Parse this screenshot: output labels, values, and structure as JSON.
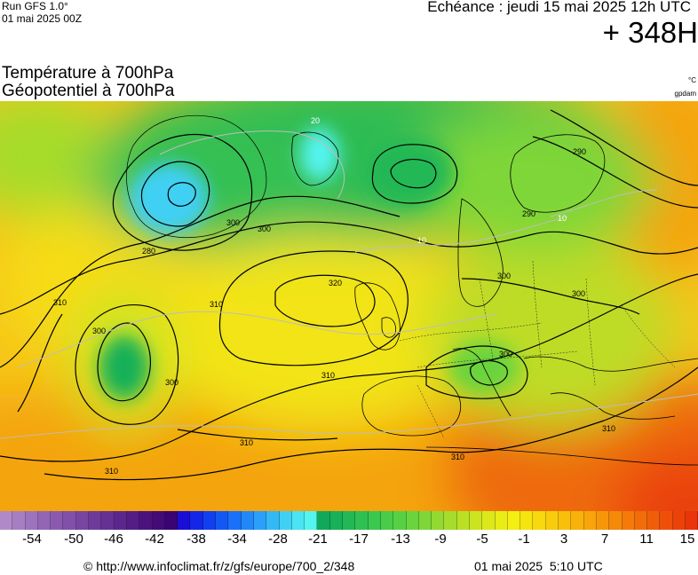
{
  "header": {
    "run_label": "Run GFS 1.0°",
    "run_date": "01 mai 2025 00Z",
    "echeance": "Echéance : jeudi 15 mai 2025 12h UTC",
    "lead_time": "+ 348H"
  },
  "parameters": {
    "line1": "Température à 700hPa",
    "line2": "Géopotentiel à 700hPa",
    "unit_temperature": "°C",
    "unit_geopotential": "gpdam"
  },
  "colorbar": {
    "tick_labels": [
      "-54",
      "-50",
      "-46",
      "-42",
      "-38",
      "-34",
      "-28",
      "-21",
      "-17",
      "-13",
      "-9",
      "-5",
      "-1",
      "3",
      "7",
      "11",
      "15"
    ],
    "colors": [
      "#b08ac8",
      "#a67fc2",
      "#9c73bc",
      "#9266b5",
      "#8a5aaf",
      "#8150a8",
      "#7845a1",
      "#6f3a9a",
      "#673093",
      "#5d268c",
      "#541c85",
      "#4b127e",
      "#430a78",
      "#3a0472",
      "#1a0ed6",
      "#1426e6",
      "#1240f0",
      "#1458f4",
      "#1a70f6",
      "#2288f8",
      "#2aa0f8",
      "#34b8f6",
      "#40d0f4",
      "#4ae4f2",
      "#54f4f0",
      "#12a85a",
      "#18b058",
      "#22b855",
      "#2ec052",
      "#3ac850",
      "#48cc4a",
      "#58d044",
      "#6ad43e",
      "#7ed638",
      "#92da32",
      "#a6dc2c",
      "#bae026",
      "#cce420",
      "#dce81a",
      "#eaec16",
      "#f4ee12",
      "#f6e410",
      "#f8d80e",
      "#f8cc0c",
      "#f8c00a",
      "#f8b20a",
      "#f8a40a",
      "#f8960a",
      "#f6880a",
      "#f47a0a",
      "#f26c0a",
      "#f05e0a",
      "#ee500a",
      "#ec420a",
      "#ea340a"
    ],
    "temp_min": -57,
    "temp_max": 17
  },
  "map": {
    "contour_labels": [
      "20",
      "280",
      "290",
      "300",
      "310",
      "320",
      "310",
      "300",
      "310",
      "300",
      "310",
      "300",
      "290",
      "300",
      "300",
      "310",
      "310",
      "310",
      "-10",
      "10",
      "-20",
      "280"
    ],
    "highs": [
      "320"
    ],
    "lows": [
      "280"
    ]
  },
  "footer": {
    "copyright": "© http://www.infoclimat.fr/z/gfs/europe/700_2/348",
    "issued": "01 mai 2025  5:10 UTC"
  }
}
